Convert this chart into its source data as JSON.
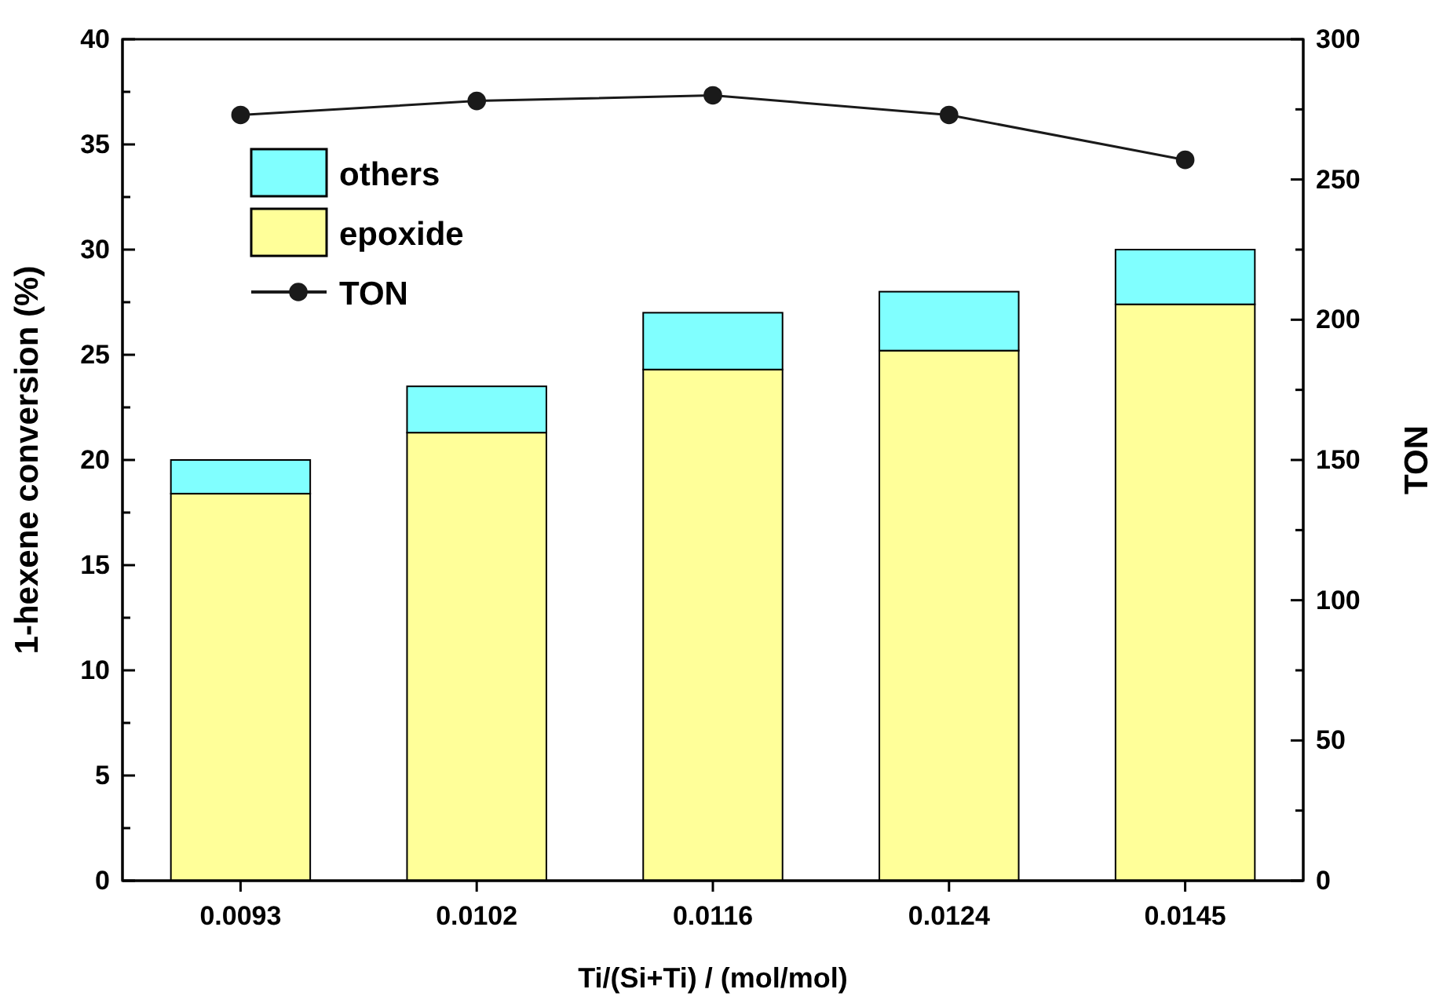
{
  "chart_data": {
    "type": "bar",
    "stacked": true,
    "xlabel": "Ti/(Si+Ti) / (mol/mol)",
    "ylabel": "1-hexene conversion (%)",
    "y2label": "TON",
    "categories": [
      "0.0093",
      "0.0102",
      "0.0116",
      "0.0124",
      "0.0145"
    ],
    "series": [
      {
        "name": "epoxide",
        "color": "#ffff99",
        "values": [
          18.4,
          21.3,
          24.3,
          25.2,
          27.4
        ]
      },
      {
        "name": "others",
        "color": "#80ffff",
        "values": [
          1.6,
          2.2,
          2.7,
          2.8,
          2.6
        ]
      },
      {
        "name": "TON",
        "type": "line",
        "axis": "y2",
        "color": "#1a1a1a",
        "marker": "circle",
        "line_style": "solid",
        "values": [
          273,
          278,
          280,
          273,
          257
        ]
      }
    ],
    "ylim": [
      0,
      40
    ],
    "yticks": [
      0,
      {
        "value": 2.5,
        "label": null
      },
      5,
      {
        "value": 7.5,
        "label": null
      },
      10,
      {
        "value": 12.5,
        "label": null
      },
      15,
      {
        "value": 17.5,
        "label": null
      },
      20,
      {
        "value": 22.5,
        "label": null
      },
      25,
      {
        "value": 27.5,
        "label": null
      },
      30,
      {
        "value": 32.5,
        "label": null
      },
      35,
      {
        "value": 37.5,
        "label": null
      },
      40
    ],
    "y2lim": [
      0,
      300
    ],
    "y2ticks": [
      0,
      {
        "value": 25,
        "label": null
      },
      50,
      {
        "value": 75,
        "label": null
      },
      100,
      {
        "value": 125,
        "label": null
      },
      150,
      {
        "value": 175,
        "label": null
      },
      200,
      {
        "value": 225,
        "label": null
      },
      250,
      {
        "value": 275,
        "label": null
      },
      300
    ],
    "legend": "top left",
    "grid": false
  }
}
